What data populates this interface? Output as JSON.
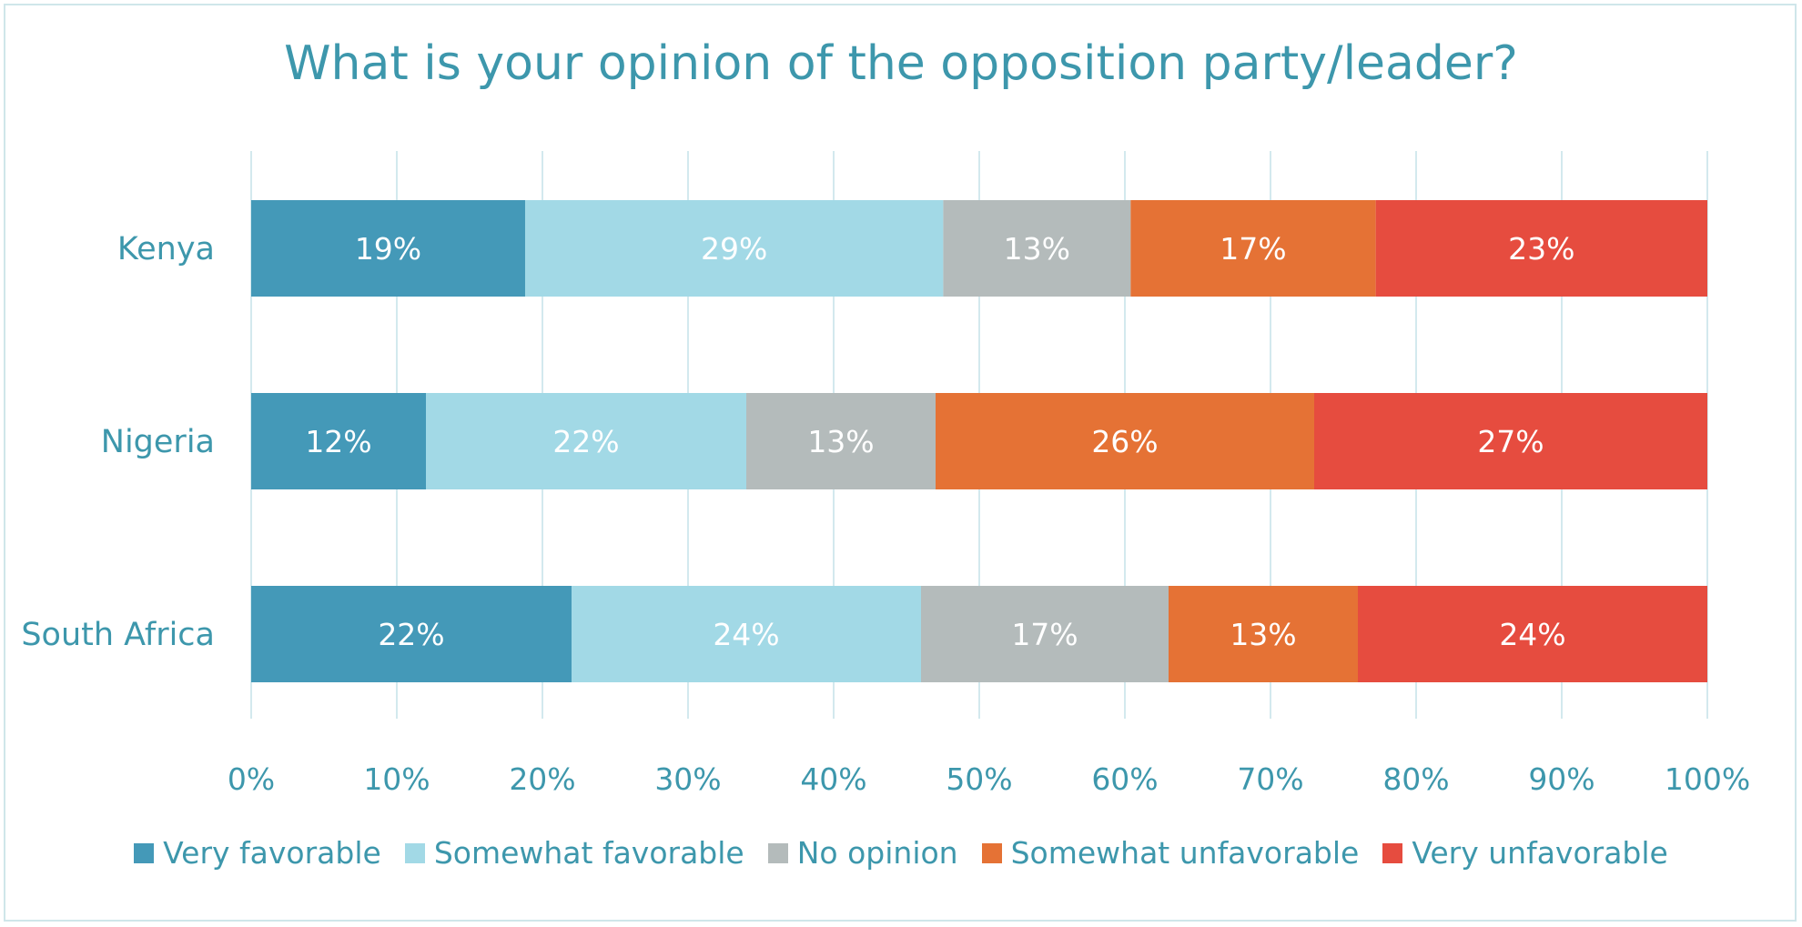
{
  "chart_data": {
    "type": "bar",
    "orientation": "horizontal",
    "stacked": true,
    "title": "What is your opinion of the opposition party/leader?",
    "categories": [
      "Kenya",
      "Nigeria",
      "South Africa"
    ],
    "series": [
      {
        "name": "Very favorable",
        "color": "#4499b8",
        "values": [
          19,
          12,
          22
        ],
        "labels": [
          "19%",
          "12%",
          "22%"
        ]
      },
      {
        "name": "Somewhat favorable",
        "color": "#a2d9e6",
        "values": [
          29,
          22,
          24
        ],
        "labels": [
          "29%",
          "22%",
          "24%"
        ]
      },
      {
        "name": "No opinion",
        "color": "#b4bbbb",
        "values": [
          13,
          13,
          17
        ],
        "labels": [
          "13%",
          "13%",
          "17%"
        ]
      },
      {
        "name": "Somewhat unfavorable",
        "color": "#e57235",
        "values": [
          17,
          26,
          13
        ],
        "labels": [
          "17%",
          "26%",
          "13%"
        ]
      },
      {
        "name": "Very unfavorable",
        "color": "#e64c3f",
        "values": [
          23,
          27,
          24
        ],
        "labels": [
          "23%",
          "27%",
          "24%"
        ]
      }
    ],
    "xlim": [
      0,
      100
    ],
    "x_ticks": [
      "0%",
      "10%",
      "20%",
      "30%",
      "40%",
      "50%",
      "60%",
      "70%",
      "80%",
      "90%",
      "100%"
    ],
    "grid": true,
    "legend_position": "bottom",
    "colors": {
      "text": "#3d97ac",
      "grid": "#d3e9ee",
      "value_label": "#ffffff"
    }
  }
}
